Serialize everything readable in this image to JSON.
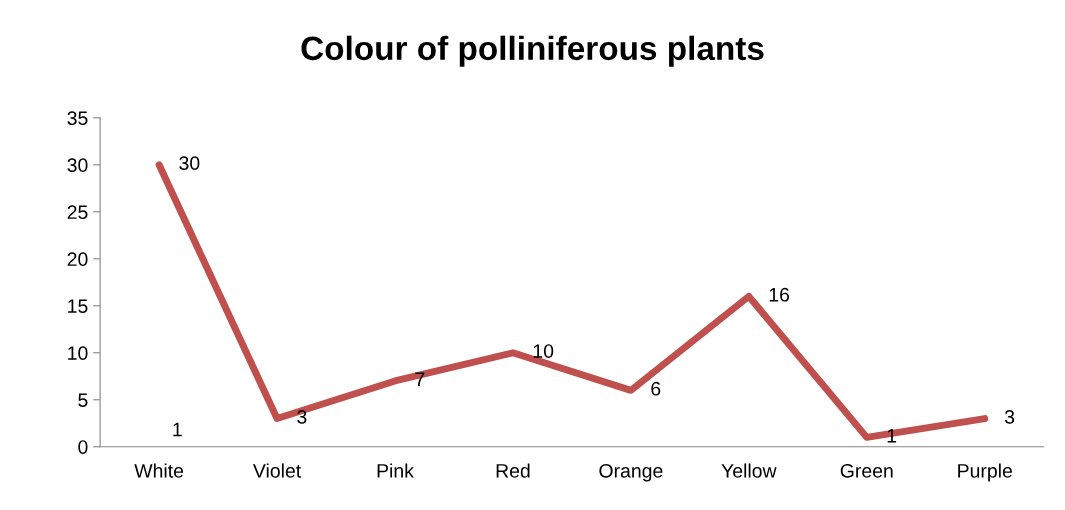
{
  "chart_data": {
    "type": "line",
    "title": "Colour of polliniferous plants",
    "categories": [
      "White",
      "Violet",
      "Pink",
      "Red",
      "Orange",
      "Yellow",
      "Green",
      "Purple"
    ],
    "series": [
      {
        "color": "#c0504d",
        "values": [
          30,
          3,
          7,
          10,
          6,
          16,
          1,
          3
        ]
      }
    ],
    "ylim": [
      0,
      35
    ],
    "yticks": [
      0,
      5,
      10,
      15,
      20,
      25,
      30,
      35
    ],
    "data_labels": true,
    "grid": false,
    "legend": false,
    "marker": "none",
    "line_style": "solid",
    "annotations": [
      "1"
    ]
  }
}
